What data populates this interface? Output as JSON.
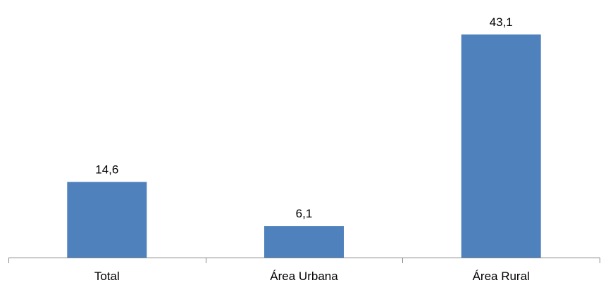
{
  "chart_data": {
    "type": "bar",
    "categories": [
      "Total",
      "Área Urbana",
      "Área Rural"
    ],
    "values": [
      14.6,
      6.1,
      43.1
    ],
    "value_labels": [
      "14,6",
      "6,1",
      "43,1"
    ],
    "title": "",
    "xlabel": "",
    "ylabel": "",
    "ylim": [
      0,
      50
    ],
    "grid": false,
    "legend": "none",
    "bar_color": "#4f81bd",
    "axis_color": "#868686"
  }
}
